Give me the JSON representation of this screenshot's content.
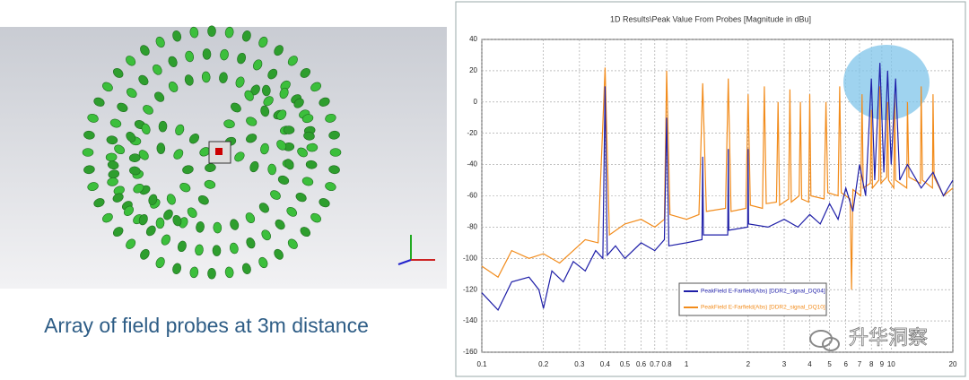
{
  "caption": "Array of field probes at 3m distance",
  "watermark": "升华洞察",
  "chart_data": {
    "type": "line",
    "title": "1D Results\\Peak Value From Probes [Magnitude in dBu]",
    "log_x": true,
    "grid": true,
    "xlim": [
      0.1,
      20
    ],
    "ylim": [
      -160,
      40
    ],
    "xticks": [
      0.1,
      0.2,
      0.3,
      0.4,
      0.5,
      0.6,
      0.7,
      0.8,
      1,
      2,
      3,
      4,
      5,
      6,
      7,
      8,
      9,
      10,
      20
    ],
    "yticks": [
      -160,
      -140,
      -120,
      -100,
      -80,
      -60,
      -40,
      -20,
      0,
      20,
      40
    ],
    "series": [
      {
        "name": "PeakField E-Farfield(Abs) [DDR2_signal_DQ10]",
        "color": "#f28c1c",
        "x": [
          0.1,
          0.12,
          0.14,
          0.17,
          0.2,
          0.24,
          0.28,
          0.32,
          0.37,
          0.4,
          0.42,
          0.5,
          0.6,
          0.7,
          0.78,
          0.8,
          0.83,
          1,
          1.15,
          1.2,
          1.25,
          1.55,
          1.6,
          1.65,
          1.95,
          2,
          2.05,
          2.35,
          2.4,
          2.45,
          2.75,
          2.8,
          2.85,
          3.15,
          3.2,
          3.25,
          3.55,
          3.6,
          3.65,
          3.95,
          4,
          4.05,
          4.7,
          4.8,
          4.9,
          5.5,
          5.6,
          5.7,
          6.3,
          6.4,
          6.5,
          7.1,
          7.2,
          7.3,
          7.9,
          8,
          8.1,
          8.7,
          8.8,
          8.9,
          9.5,
          9.6,
          9.7,
          10.3,
          10.4,
          10.5,
          11.9,
          12,
          12.2,
          13.9,
          14,
          14.2,
          15.9,
          16,
          16.2,
          18,
          20
        ],
        "values": [
          -105,
          -112,
          -95,
          -100,
          -97,
          -103,
          -95,
          -88,
          -90,
          22,
          -85,
          -78,
          -75,
          -80,
          -75,
          20,
          -72,
          -75,
          -72,
          12,
          -70,
          -68,
          15,
          -70,
          -68,
          5,
          -66,
          -68,
          10,
          -65,
          -64,
          0,
          -66,
          -62,
          8,
          -64,
          -60,
          0,
          -62,
          -64,
          5,
          -60,
          -62,
          0,
          -58,
          -60,
          10,
          -58,
          -62,
          -120,
          -56,
          -60,
          5,
          -55,
          -52,
          -5,
          -55,
          -50,
          10,
          -52,
          -48,
          0,
          -50,
          -55,
          5,
          -50,
          -55,
          0,
          -48,
          -52,
          10,
          -50,
          -55,
          5,
          -48,
          -60,
          -55
        ]
      },
      {
        "name": "PeakField E-Farfield(Abs) [DDR2_signal_DQ04]",
        "color": "#1f1fa8",
        "x": [
          0.1,
          0.12,
          0.14,
          0.17,
          0.19,
          0.2,
          0.22,
          0.25,
          0.28,
          0.32,
          0.36,
          0.39,
          0.4,
          0.41,
          0.45,
          0.5,
          0.6,
          0.7,
          0.78,
          0.8,
          0.82,
          1,
          1.19,
          1.2,
          1.21,
          1.59,
          1.6,
          1.61,
          1.99,
          2,
          2.01,
          2.5,
          3,
          3.5,
          4,
          4.5,
          5,
          5.5,
          6,
          6.5,
          7,
          7.5,
          8,
          8.3,
          8.8,
          9.2,
          9.6,
          10,
          10.5,
          11,
          12,
          14,
          16,
          18,
          20
        ],
        "values": [
          -122,
          -133,
          -115,
          -112,
          -120,
          -132,
          -108,
          -115,
          -102,
          -108,
          -95,
          -100,
          10,
          -98,
          -92,
          -100,
          -90,
          -95,
          -88,
          -10,
          -92,
          -90,
          -88,
          -35,
          -85,
          -85,
          -30,
          -82,
          -80,
          -30,
          -78,
          -80,
          -75,
          -80,
          -72,
          -78,
          -65,
          -75,
          -55,
          -70,
          -40,
          -60,
          15,
          -50,
          25,
          -45,
          20,
          -40,
          15,
          -50,
          -40,
          -55,
          -45,
          -60,
          -50
        ]
      }
    ]
  }
}
